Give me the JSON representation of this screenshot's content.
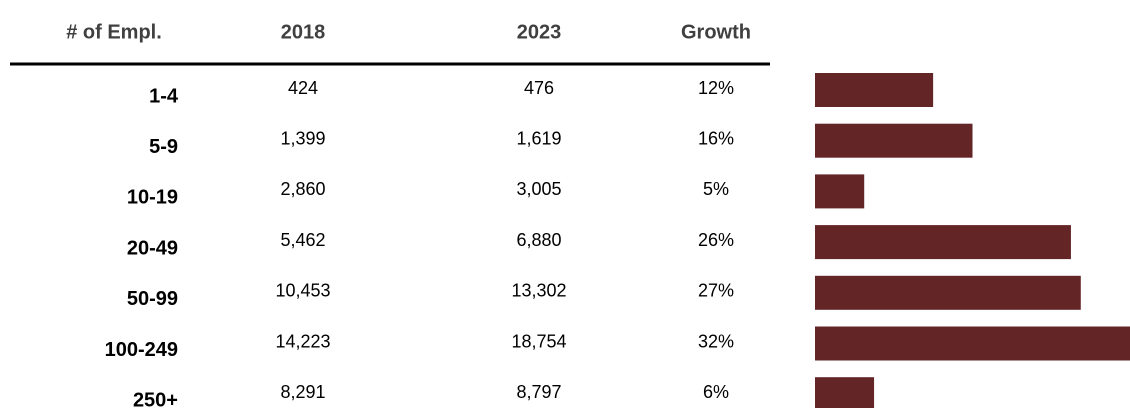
{
  "table": {
    "headers": [
      "# of Empl.",
      "2018",
      "2023",
      "Growth"
    ],
    "rows": [
      [
        "1-4",
        "424",
        "476"
      ],
      [
        "5-9",
        "1,399",
        "1,619"
      ],
      [
        "10-19",
        "2,860",
        "3,005"
      ],
      [
        "20-49",
        "5,462",
        "6,880"
      ],
      [
        "50-99",
        "10,453",
        "13,302"
      ],
      [
        "100-249",
        "14,223",
        "18,754"
      ],
      [
        "250+",
        "8,291",
        "8,797"
      ]
    ],
    "growth": {
      "values": [
        12,
        16,
        5,
        26,
        27,
        32,
        6
      ],
      "value_labels": [
        "12%",
        "16%",
        "5%",
        "26%",
        "27%",
        "32%",
        "6%"
      ],
      "color": "#632526"
    }
  }
}
